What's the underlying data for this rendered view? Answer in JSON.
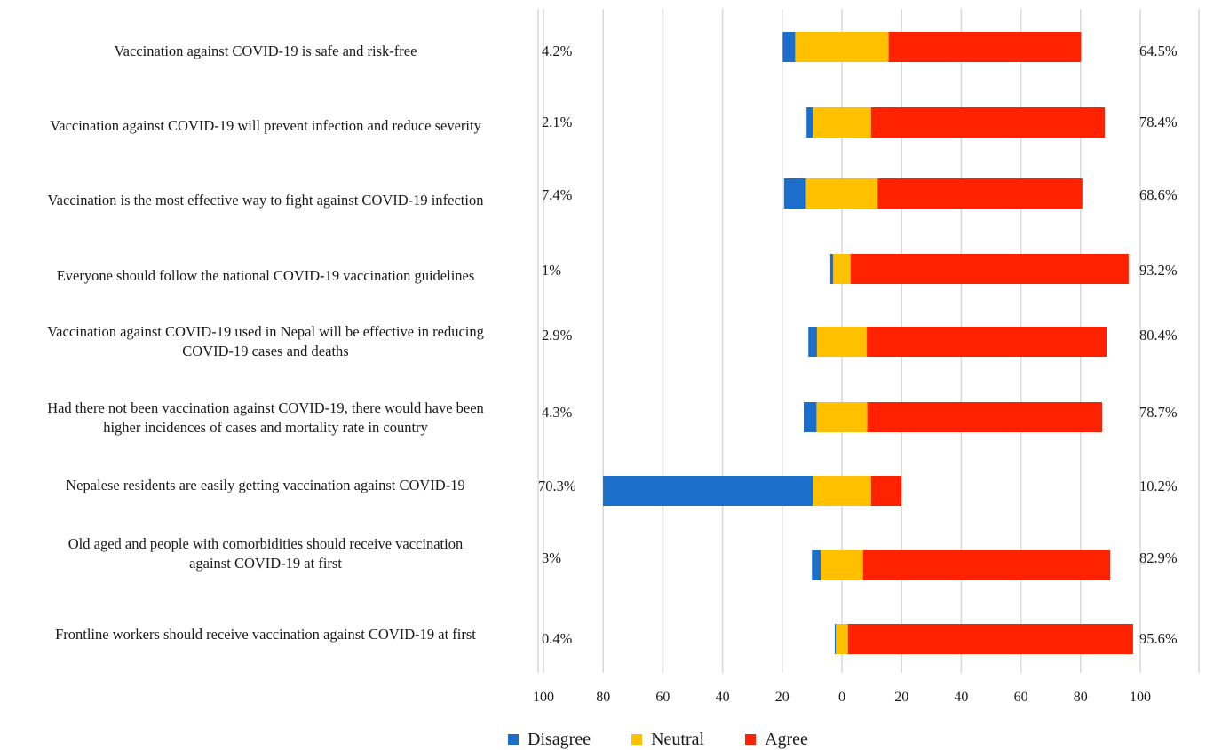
{
  "chart_data": {
    "type": "bar",
    "orientation": "horizontal",
    "stacked": true,
    "diverging": true,
    "categories": [
      "Vaccination against COVID-19 is safe and risk-free",
      "Vaccination against COVID-19 will prevent infection and reduce severity",
      "Vaccination is the most effective way to fight against COVID-19 infection",
      "Everyone should follow the national COVID-19 vaccination guidelines",
      "Vaccination against COVID-19 used in Nepal will be effective in reducing COVID-19 cases and deaths",
      "Had there not been vaccination against COVID-19, there would have been higher incidences of cases and mortality rate in country",
      "Nepalese residents are easily getting vaccination against COVID-19",
      "Old aged and people with comorbidities should receive vaccination against COVID-19 at first",
      "Frontline workers should receive vaccination against COVID-19 at first"
    ],
    "series": [
      {
        "name": "Disagree",
        "color": "#1b6fca",
        "values": [
          4.2,
          2.1,
          7.4,
          1,
          2.9,
          4.3,
          70.3,
          3,
          0.4
        ]
      },
      {
        "name": "Neutral",
        "color": "#ffc000",
        "values": [
          31.3,
          19.5,
          24.0,
          5.8,
          16.7,
          17.0,
          19.5,
          14.1,
          4.0
        ]
      },
      {
        "name": "Agree",
        "color": "#ff2200",
        "values": [
          64.5,
          78.4,
          68.6,
          93.2,
          80.4,
          78.7,
          10.2,
          82.9,
          95.6
        ]
      }
    ],
    "left_labels": [
      "4.2%",
      "2.1%",
      "7.4%",
      "1%",
      "2.9%",
      "4.3%",
      "70.3%",
      "3%",
      "0.4%"
    ],
    "right_labels": [
      "64.5%",
      "78.4%",
      "68.6%",
      "93.2%",
      "80.4%",
      "78.7%",
      "10.2%",
      "82.9%",
      "95.6%"
    ],
    "xlim": [
      -100,
      100
    ],
    "xticks": [
      -100,
      -80,
      -60,
      -40,
      -20,
      0,
      20,
      40,
      60,
      80,
      100
    ],
    "xtick_labels": [
      "100",
      "80",
      "60",
      "40",
      "20",
      "0",
      "20",
      "40",
      "60",
      "80",
      "100"
    ],
    "grid": true,
    "legend_position": "bottom",
    "legend": [
      "Disagree",
      "Neutral",
      "Agree"
    ],
    "title": "",
    "xlabel": "",
    "ylabel": ""
  }
}
